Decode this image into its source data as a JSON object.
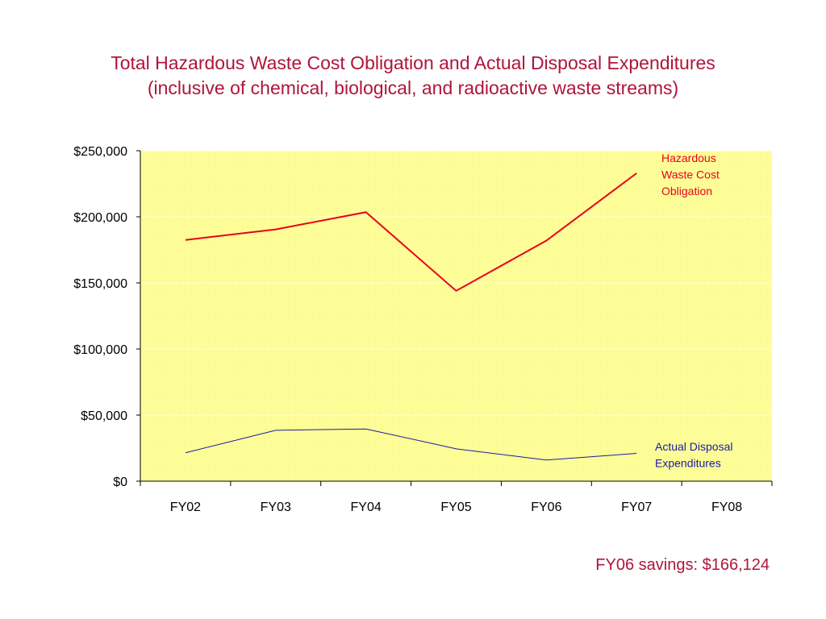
{
  "slide": {
    "title_line1": "Total Hazardous Waste Cost Obligation and Actual Disposal Expenditures",
    "title_line2": "(inclusive of chemical, biological, and radioactive waste streams)",
    "footnote": "FY06 savings: $166,124"
  },
  "colors": {
    "title": "#b0143c",
    "plot_background": "#ffff99",
    "obligation_line": "#e8001c",
    "expenditure_line": "#1a1aa6"
  },
  "chart_data": {
    "type": "line",
    "categories": [
      "FY02",
      "FY03",
      "FY04",
      "FY05",
      "FY06",
      "FY07",
      "FY08"
    ],
    "ylim": [
      0,
      250000
    ],
    "yticks": [
      0,
      50000,
      100000,
      150000,
      200000,
      250000
    ],
    "ytick_labels": [
      "$0",
      "$50,000",
      "$100,000",
      "$150,000",
      "$200,000",
      "$250,000"
    ],
    "grid": true,
    "series": [
      {
        "name_lines": [
          "Hazardous",
          "Waste Cost",
          "Obligation"
        ],
        "color": "#e8001c",
        "values": [
          182500,
          190500,
          203500,
          144000,
          182000,
          233000,
          null
        ]
      },
      {
        "name_lines": [
          "Actual Disposal",
          "Expenditures"
        ],
        "color": "#1a1aa6",
        "values": [
          21500,
          38500,
          39500,
          24500,
          16000,
          21000,
          null
        ]
      }
    ]
  }
}
